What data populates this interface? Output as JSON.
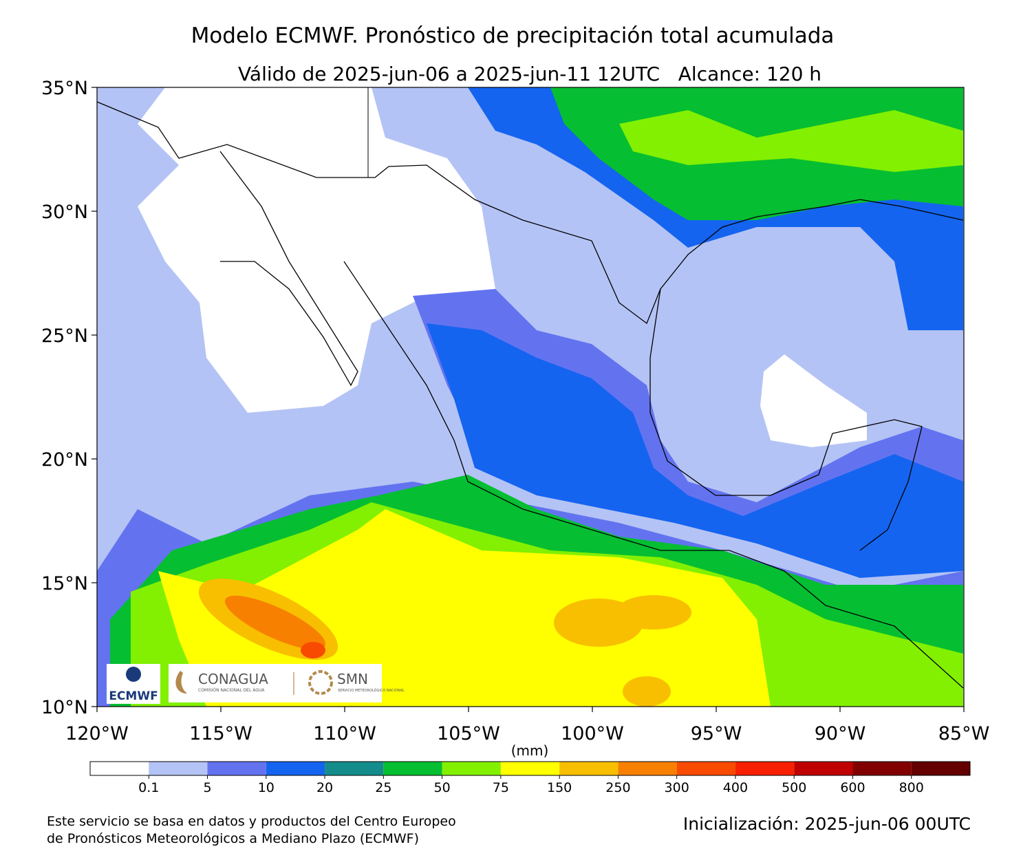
{
  "chart_data": {
    "type": "contour_map",
    "title": "Modelo ECMWF. Pronóstico de precipitación total acumulada",
    "subtitle": "Válido de 2025-jun-06 a 2025-jun-11 12UTC   Alcance: 120 h",
    "xlim": [
      -120,
      -85
    ],
    "ylim": [
      10,
      35
    ],
    "xticks": [
      {
        "value": -120,
        "label": "120°W"
      },
      {
        "value": -115,
        "label": "115°W"
      },
      {
        "value": -110,
        "label": "110°W"
      },
      {
        "value": -105,
        "label": "105°W"
      },
      {
        "value": -100,
        "label": "100°W"
      },
      {
        "value": -95,
        "label": "95°W"
      },
      {
        "value": -90,
        "label": "90°W"
      },
      {
        "value": -85,
        "label": "85°W"
      }
    ],
    "yticks": [
      {
        "value": 10,
        "label": "10°N"
      },
      {
        "value": 15,
        "label": "15°N"
      },
      {
        "value": 20,
        "label": "20°N"
      },
      {
        "value": 25,
        "label": "25°N"
      },
      {
        "value": 30,
        "label": "30°N"
      },
      {
        "value": 35,
        "label": "35°N"
      }
    ],
    "colorbar": {
      "label": "(mm)",
      "ticks": [
        0.1,
        5,
        10,
        20,
        25,
        50,
        75,
        150,
        250,
        300,
        400,
        500,
        600,
        800
      ],
      "colors": [
        "#ffffff",
        "#b4c3f5",
        "#6373f0",
        "#1464f0",
        "#148c8c",
        "#05be32",
        "#82f000",
        "#ffff00",
        "#f8bf00",
        "#f88000",
        "#f84a00",
        "#f82000",
        "#c00000",
        "#820000",
        "#640000"
      ]
    }
  },
  "logos": {
    "ecmwf": "ECMWF",
    "conagua": "CONAGUA",
    "conagua_sub": "COMISIÓN NACIONAL DEL AGUA",
    "smn": "SMN",
    "smn_sub": "SERVICIO METEOROLÓGICO NACIONAL"
  },
  "footer": {
    "note": [
      "Este servicio se basa en datos y productos del Centro Europeo",
      "de Pronósticos Meteorológicos a Mediano Plazo (ECMWF)"
    ],
    "init": "Inicialización: 2025-jun-06 00UTC"
  }
}
